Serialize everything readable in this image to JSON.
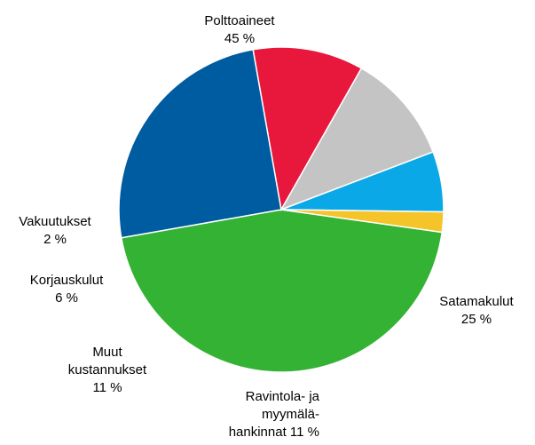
{
  "chart_data": {
    "type": "pie",
    "start_angle_deg": 8,
    "slices": [
      {
        "label_lines": [
          "Polttoaineet"
        ],
        "value_text": "45 %",
        "value": 45,
        "color": "#33b233"
      },
      {
        "label_lines": [
          "Satamakulut"
        ],
        "value_text": "25 %",
        "value": 25,
        "color": "#005ca0"
      },
      {
        "label_lines": [
          "Ravintola- ja",
          "myymälä-",
          "hankinnat"
        ],
        "value_text": "11 %",
        "value": 11,
        "color": "#e8173c"
      },
      {
        "label_lines": [
          "Muut",
          "kustannukset"
        ],
        "value_text": "11 %",
        "value": 11,
        "color": "#c4c4c4"
      },
      {
        "label_lines": [
          "Korjauskulut"
        ],
        "value_text": "6 %",
        "value": 6,
        "color": "#0aa8e6"
      },
      {
        "label_lines": [
          "Vakuutukset"
        ],
        "value_text": "2 %",
        "value": 2,
        "color": "#f5c428"
      }
    ]
  }
}
